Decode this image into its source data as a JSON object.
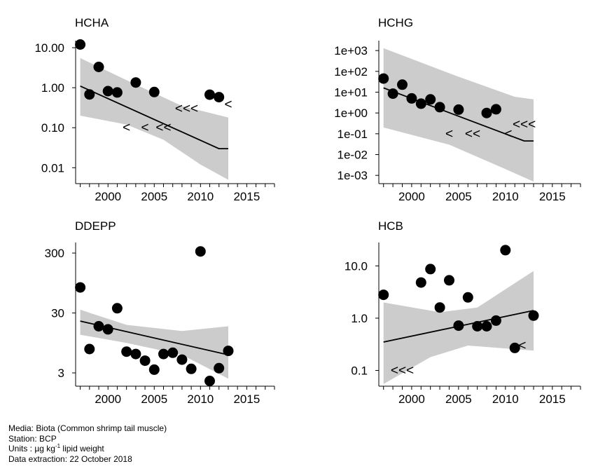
{
  "chart_data": [
    {
      "title": "HCHA",
      "type": "scatter",
      "y_scale": "log",
      "xlim": [
        1996.5,
        2018
      ],
      "ylim": [
        0.004,
        15
      ],
      "x_ticks": [
        2000,
        2005,
        2010,
        2015
      ],
      "y_ticks": [
        {
          "value": 10,
          "label": "10.00"
        },
        {
          "value": 1,
          "label": "1.00"
        },
        {
          "value": 0.1,
          "label": "0.10"
        },
        {
          "value": 0.01,
          "label": "0.01"
        }
      ],
      "points": [
        {
          "x": 1997,
          "y": 12
        },
        {
          "x": 1998,
          "y": 0.68
        },
        {
          "x": 1999,
          "y": 3.3
        },
        {
          "x": 2000,
          "y": 0.82
        },
        {
          "x": 2001,
          "y": 0.76
        },
        {
          "x": 2003,
          "y": 1.35
        },
        {
          "x": 2005,
          "y": 0.78
        },
        {
          "x": 2011,
          "y": 0.67
        },
        {
          "x": 2012,
          "y": 0.58
        }
      ],
      "less_than": [
        {
          "x": 2002,
          "y": 0.1,
          "text": "<"
        },
        {
          "x": 2004,
          "y": 0.1,
          "text": "<"
        },
        {
          "x": 2006,
          "y": 0.1,
          "text": "<<"
        },
        {
          "x": 2008.5,
          "y": 0.3,
          "text": "<<<"
        },
        {
          "x": 2013,
          "y": 0.38,
          "text": "<"
        }
      ],
      "trend": [
        {
          "x": 1997,
          "y": 1.1
        },
        {
          "x": 2012,
          "y": 0.03
        },
        {
          "x": 2013,
          "y": 0.03
        }
      ],
      "band_upper": [
        {
          "x": 1997,
          "y": 5.5
        },
        {
          "x": 2003,
          "y": 1.2
        },
        {
          "x": 2008,
          "y": 0.35
        },
        {
          "x": 2013,
          "y": 0.18
        }
      ],
      "band_lower": [
        {
          "x": 1997,
          "y": 0.2
        },
        {
          "x": 2002,
          "y": 0.12
        },
        {
          "x": 2006,
          "y": 0.05
        },
        {
          "x": 2010,
          "y": 0.012
        },
        {
          "x": 2013,
          "y": 0.005
        }
      ]
    },
    {
      "title": "HCHG",
      "type": "scatter",
      "y_scale": "log",
      "xlim": [
        1996.5,
        2018
      ],
      "ylim": [
        0.0004,
        3000
      ],
      "x_ticks": [
        2000,
        2005,
        2010,
        2015
      ],
      "y_ticks": [
        {
          "value": 1000,
          "label": "1e+03"
        },
        {
          "value": 100,
          "label": "1e+02"
        },
        {
          "value": 10,
          "label": "1e+01"
        },
        {
          "value": 1,
          "label": "1e+00"
        },
        {
          "value": 0.1,
          "label": "1e-01"
        },
        {
          "value": 0.01,
          "label": "1e-02"
        },
        {
          "value": 0.001,
          "label": "1e-03"
        }
      ],
      "points": [
        {
          "x": 1997,
          "y": 45
        },
        {
          "x": 1998,
          "y": 8.5
        },
        {
          "x": 1999,
          "y": 23
        },
        {
          "x": 2000,
          "y": 5
        },
        {
          "x": 2001,
          "y": 2.8
        },
        {
          "x": 2002,
          "y": 4.5
        },
        {
          "x": 2003,
          "y": 1.9
        },
        {
          "x": 2005,
          "y": 1.45
        },
        {
          "x": 2008,
          "y": 1
        },
        {
          "x": 2009,
          "y": 1.5
        }
      ],
      "less_than": [
        {
          "x": 2004,
          "y": 0.1,
          "text": "<"
        },
        {
          "x": 2006.5,
          "y": 0.1,
          "text": "<<"
        },
        {
          "x": 2010.3,
          "y": 0.1,
          "text": "<"
        },
        {
          "x": 2012,
          "y": 0.28,
          "text": "<<<"
        }
      ],
      "trend": [
        {
          "x": 1997,
          "y": 16
        },
        {
          "x": 2012,
          "y": 0.045
        },
        {
          "x": 2013,
          "y": 0.045
        }
      ],
      "band_upper": [
        {
          "x": 1997,
          "y": 1300
        },
        {
          "x": 2005,
          "y": 55
        },
        {
          "x": 2011,
          "y": 6
        },
        {
          "x": 2013,
          "y": 4.5
        }
      ],
      "band_lower": [
        {
          "x": 1997,
          "y": 0.2
        },
        {
          "x": 2004,
          "y": 0.03
        },
        {
          "x": 2010,
          "y": 0.002
        },
        {
          "x": 2013,
          "y": 0.0005
        }
      ]
    },
    {
      "title": "DDEPP",
      "type": "scatter",
      "y_scale": "log",
      "xlim": [
        1996.5,
        2018
      ],
      "ylim": [
        1.8,
        450
      ],
      "x_ticks": [
        2000,
        2005,
        2010,
        2015
      ],
      "y_ticks": [
        {
          "value": 300,
          "label": "300"
        },
        {
          "value": 30,
          "label": "30"
        },
        {
          "value": 3,
          "label": "3"
        }
      ],
      "points": [
        {
          "x": 1997,
          "y": 80
        },
        {
          "x": 1998,
          "y": 7.5
        },
        {
          "x": 1999,
          "y": 18
        },
        {
          "x": 2000,
          "y": 16
        },
        {
          "x": 2001,
          "y": 36
        },
        {
          "x": 2002,
          "y": 6.8
        },
        {
          "x": 2003,
          "y": 6.2
        },
        {
          "x": 2004,
          "y": 4.8
        },
        {
          "x": 2005,
          "y": 3.4
        },
        {
          "x": 2006,
          "y": 6.2
        },
        {
          "x": 2007,
          "y": 6.5
        },
        {
          "x": 2008,
          "y": 5
        },
        {
          "x": 2009,
          "y": 3.5
        },
        {
          "x": 2010,
          "y": 320
        },
        {
          "x": 2011,
          "y": 2.2
        },
        {
          "x": 2012,
          "y": 3.6
        },
        {
          "x": 2013,
          "y": 7
        }
      ],
      "less_than": [],
      "trend": [
        {
          "x": 1997,
          "y": 22
        },
        {
          "x": 2013,
          "y": 6
        }
      ],
      "band_upper": [
        {
          "x": 1997,
          "y": 34
        },
        {
          "x": 2002,
          "y": 19
        },
        {
          "x": 2008,
          "y": 15
        },
        {
          "x": 2013,
          "y": 18
        }
      ],
      "band_lower": [
        {
          "x": 1997,
          "y": 13
        },
        {
          "x": 2002,
          "y": 9.5
        },
        {
          "x": 2008,
          "y": 6
        },
        {
          "x": 2013,
          "y": 2.4
        }
      ]
    },
    {
      "title": "HCB",
      "type": "scatter",
      "y_scale": "log",
      "xlim": [
        1996.5,
        2018
      ],
      "ylim": [
        0.05,
        28
      ],
      "x_ticks": [
        2000,
        2005,
        2010,
        2015
      ],
      "y_ticks": [
        {
          "value": 10,
          "label": "10.0"
        },
        {
          "value": 1,
          "label": "1.0"
        },
        {
          "value": 0.1,
          "label": "0.1"
        }
      ],
      "points": [
        {
          "x": 1997,
          "y": 2.8
        },
        {
          "x": 2001,
          "y": 4.8
        },
        {
          "x": 2002,
          "y": 8.7
        },
        {
          "x": 2003,
          "y": 1.6
        },
        {
          "x": 2004,
          "y": 5.3
        },
        {
          "x": 2005,
          "y": 0.72
        },
        {
          "x": 2006,
          "y": 2.5
        },
        {
          "x": 2007,
          "y": 0.7
        },
        {
          "x": 2008,
          "y": 0.7
        },
        {
          "x": 2009,
          "y": 0.9
        },
        {
          "x": 2010,
          "y": 20
        },
        {
          "x": 2011,
          "y": 0.27
        },
        {
          "x": 2013,
          "y": 1.12
        }
      ],
      "less_than": [
        {
          "x": 1999,
          "y": 0.1,
          "text": "<<<"
        },
        {
          "x": 2011.8,
          "y": 0.3,
          "text": "<"
        }
      ],
      "trend": [
        {
          "x": 1997,
          "y": 0.35
        },
        {
          "x": 2013,
          "y": 1.4
        }
      ],
      "band_upper": [
        {
          "x": 1997,
          "y": 2
        },
        {
          "x": 2003,
          "y": 1.3
        },
        {
          "x": 2007,
          "y": 1.6
        },
        {
          "x": 2013,
          "y": 8
        }
      ],
      "band_lower": [
        {
          "x": 1997,
          "y": 0.055
        },
        {
          "x": 2002,
          "y": 0.18
        },
        {
          "x": 2006,
          "y": 0.3
        },
        {
          "x": 2013,
          "y": 0.24
        }
      ]
    }
  ],
  "footer": {
    "media": "Media: Biota (Common shrimp tail muscle)",
    "station": "Station: BCP",
    "units_prefix": "Units : µg kg",
    "units_exp": "-1",
    "units_suffix": " lipid weight",
    "extraction": "Data extraction: 22 October 2018"
  }
}
